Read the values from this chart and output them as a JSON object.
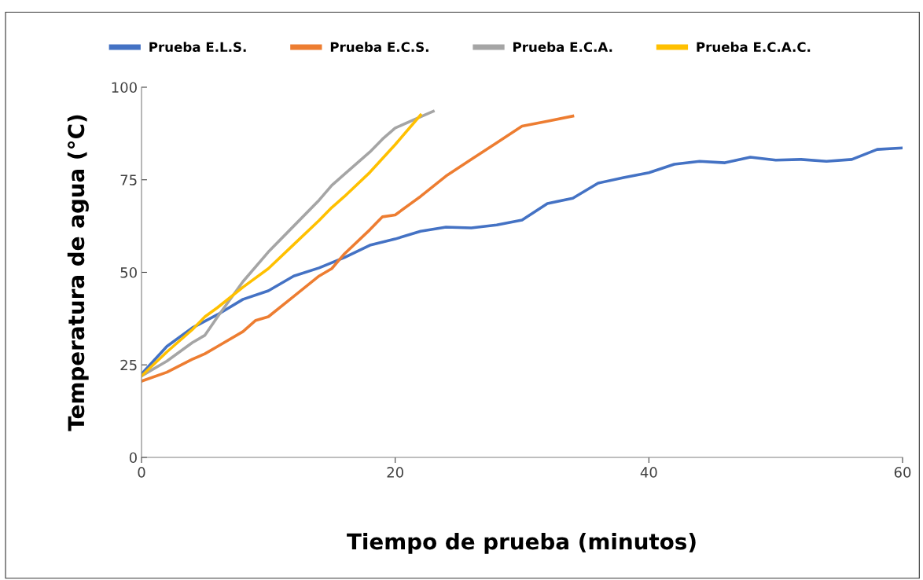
{
  "chart_data": {
    "type": "line",
    "xlabel": "Tiempo de prueba (minutos)",
    "ylabel": "Temperatura de agua (°C)",
    "xlim": [
      0,
      60
    ],
    "xticks": [
      0,
      20,
      40,
      60
    ],
    "ylim": [
      0,
      100
    ],
    "yticks": [
      0,
      25,
      50,
      75,
      100
    ],
    "grid": false,
    "legend": "top",
    "marker": "none",
    "line_style": "solid",
    "series": [
      {
        "name": "Prueba E.L.S.",
        "color": "#4472c4",
        "x": [
          0,
          2,
          4,
          6,
          8,
          10,
          12,
          14,
          16,
          18,
          20,
          22,
          24,
          26,
          28,
          30,
          32,
          34,
          36,
          38,
          40,
          42,
          44,
          46,
          48,
          50,
          52,
          54,
          56,
          58,
          60
        ],
        "values": [
          22.5,
          30,
          35,
          38.6,
          42.7,
          45,
          49,
          51.2,
          54,
          57.3,
          59,
          61.1,
          62.2,
          62,
          62.8,
          64.1,
          68.6,
          70,
          74.1,
          75.6,
          76.9,
          79.2,
          80,
          79.6,
          81.1,
          80.3,
          80.5,
          80,
          80.5,
          83.2,
          83.6
        ]
      },
      {
        "name": "Prueba E.C.S.",
        "color": "#ed7d31",
        "x": [
          0,
          2,
          4,
          5,
          6,
          8,
          9,
          10,
          12,
          14,
          15,
          16,
          18,
          19,
          20,
          22,
          24,
          26,
          28,
          30,
          32,
          34
        ],
        "values": [
          20.6,
          23,
          26.5,
          28,
          30,
          34,
          37,
          38,
          43.5,
          49,
          51,
          55,
          61.5,
          65,
          65.5,
          70.5,
          76,
          80.5,
          85,
          89.5,
          90.8,
          92.2
        ]
      },
      {
        "name": "Prueba E.C.A.",
        "color": "#a5a5a5",
        "x": [
          0,
          2,
          4,
          5,
          6,
          8,
          10,
          12,
          14,
          15,
          16,
          18,
          19,
          20,
          22,
          23
        ],
        "values": [
          22,
          26,
          31,
          33,
          38,
          47.5,
          55.5,
          62.5,
          69.5,
          73.5,
          76.5,
          82.5,
          86,
          89,
          92,
          93.5
        ]
      },
      {
        "name": "Prueba E.C.A.C.",
        "color": "#ffc000",
        "x": [
          0,
          2,
          4,
          5,
          6,
          8,
          10,
          12,
          14,
          15,
          16,
          18,
          20,
          22
        ],
        "values": [
          22,
          28.5,
          34.5,
          38,
          40.5,
          46,
          51,
          57.5,
          64,
          67.5,
          70.5,
          77,
          84.5,
          92.5
        ]
      }
    ]
  }
}
